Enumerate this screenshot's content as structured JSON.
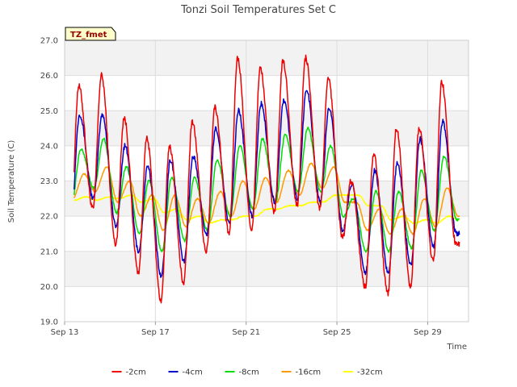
{
  "chart_data": {
    "type": "line",
    "title": "Tonzi Soil Temperatures Set C",
    "xlabel": "Time",
    "ylabel": "Soil Temperature (C)",
    "annotation": "TZ_fmet",
    "x_start": "Sep 13",
    "xlim": [
      0,
      17.8
    ],
    "ylim": [
      19.0,
      27.0
    ],
    "y_ticks": [
      "19.0",
      "20.0",
      "21.0",
      "22.0",
      "23.0",
      "24.0",
      "25.0",
      "26.0",
      "27.0"
    ],
    "x_ticks": [
      {
        "label": "Sep 13",
        "day": 0
      },
      {
        "label": "Sep 17",
        "day": 4
      },
      {
        "label": "Sep 21",
        "day": 8
      },
      {
        "label": "Sep 25",
        "day": 12
      },
      {
        "label": "Sep 29",
        "day": 16
      }
    ],
    "grid": true,
    "banded_background": true,
    "legend_position": "bottom-center",
    "series": [
      {
        "name": "-2cm",
        "color": "#ee0000",
        "peak_hour": 0.62,
        "mins": [
          21.5,
          22.2,
          21.2,
          20.4,
          19.6,
          20.1,
          21.0,
          21.5,
          21.6,
          22.1,
          22.3,
          22.2,
          21.4,
          20.0,
          19.8,
          20.0,
          20.7,
          21.2
        ],
        "maxs": [
          25.7,
          26.0,
          24.8,
          24.2,
          24.0,
          24.7,
          25.1,
          26.5,
          26.2,
          26.4,
          26.5,
          25.9,
          23.0,
          23.8,
          24.5,
          24.5,
          25.8
        ]
      },
      {
        "name": "-4cm",
        "color": "#0000cc",
        "peak_hour": 0.66,
        "mins": [
          21.8,
          22.5,
          21.7,
          21.0,
          20.3,
          20.7,
          21.5,
          21.8,
          22.0,
          22.4,
          22.5,
          22.4,
          21.6,
          20.4,
          20.4,
          20.6,
          21.1,
          21.5
        ],
        "maxs": [
          24.9,
          24.9,
          24.0,
          23.4,
          23.6,
          23.7,
          24.5,
          25.0,
          25.2,
          25.3,
          25.6,
          25.1,
          22.9,
          23.3,
          23.5,
          24.2,
          24.7
        ]
      },
      {
        "name": "-8cm",
        "color": "#00dd00",
        "peak_hour": 0.72,
        "mins": [
          22.3,
          22.8,
          22.1,
          21.5,
          21.0,
          21.3,
          21.6,
          22.0,
          22.2,
          22.4,
          22.7,
          22.7,
          22.0,
          21.0,
          21.0,
          21.1,
          21.6,
          21.9
        ],
        "maxs": [
          23.9,
          24.2,
          23.4,
          23.0,
          23.1,
          23.1,
          23.6,
          24.0,
          24.2,
          24.3,
          24.5,
          24.0,
          22.5,
          22.7,
          22.7,
          23.3,
          23.7
        ]
      },
      {
        "name": "-16cm",
        "color": "#ff9900",
        "peak_hour": 0.86,
        "mins": [
          22.5,
          22.7,
          22.4,
          22.0,
          21.6,
          21.7,
          21.8,
          22.0,
          22.2,
          22.4,
          22.6,
          22.8,
          22.4,
          21.6,
          21.5,
          21.5,
          21.7,
          22.0
        ],
        "maxs": [
          23.2,
          23.4,
          23.0,
          22.6,
          22.6,
          22.5,
          22.7,
          23.0,
          23.1,
          23.3,
          23.5,
          23.4,
          22.4,
          22.2,
          22.2,
          22.5,
          22.8
        ]
      },
      {
        "name": "-32cm",
        "color": "#ffff00",
        "peak_hour": 0.95,
        "mins": [
          22.45,
          22.45,
          22.5,
          22.4,
          22.1,
          21.9,
          21.8,
          21.9,
          22.0,
          22.2,
          22.3,
          22.4,
          22.6,
          22.3,
          21.9,
          21.8,
          21.8,
          21.9
        ],
        "maxs": [
          22.55,
          22.55,
          22.6,
          22.5,
          22.2,
          22.0,
          21.9,
          22.0,
          22.2,
          22.3,
          22.4,
          22.6,
          22.6,
          22.3,
          22.0,
          21.9,
          22.0
        ]
      }
    ]
  }
}
